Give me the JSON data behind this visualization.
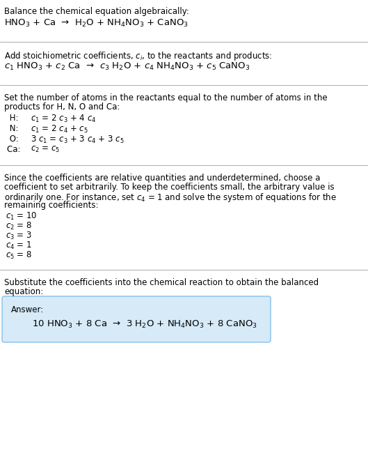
{
  "bg_color": "#ffffff",
  "text_color": "#000000",
  "title": "Balance the chemical equation algebraically:",
  "eq1": "HNO$_3$ + Ca  →  H$_2$O + NH$_4$NO$_3$ + CaNO$_3$",
  "section2_header": "Add stoichiometric coefficients, $c_i$, to the reactants and products:",
  "eq2": "$c_1$ HNO$_3$ + $c_2$ Ca  →  $c_3$ H$_2$O + $c_4$ NH$_4$NO$_3$ + $c_5$ CaNO$_3$",
  "section3_header_line1": "Set the number of atoms in the reactants equal to the number of atoms in the",
  "section3_header_line2": "products for H, N, O and Ca:",
  "equations": [
    [
      " H:  ",
      "$c_1$ = 2 $c_3$ + 4 $c_4$"
    ],
    [
      " N:  ",
      "$c_1$ = 2 $c_4$ + $c_5$"
    ],
    [
      " O:  ",
      "3 $c_1$ = $c_3$ + 3 $c_4$ + 3 $c_5$"
    ],
    [
      "Ca:  ",
      "$c_2$ = $c_5$"
    ]
  ],
  "section4_line1": "Since the coefficients are relative quantities and underdetermined, choose a",
  "section4_line2": "coefficient to set arbitrarily. To keep the coefficients small, the arbitrary value is",
  "section4_line3": "ordinarily one. For instance, set $c_4$ = 1 and solve the system of equations for the",
  "section4_line4": "remaining coefficients:",
  "coefficients": [
    "$c_1$ = 10",
    "$c_2$ = 8",
    "$c_3$ = 3",
    "$c_4$ = 1",
    "$c_5$ = 8"
  ],
  "section5_line1": "Substitute the coefficients into the chemical reaction to obtain the balanced",
  "section5_line2": "equation:",
  "answer_label": "Answer:",
  "answer_eq": "10 HNO$_3$ + 8 Ca  →  3 H$_2$O + NH$_4$NO$_3$ + 8 CaNO$_3$",
  "answer_box_color": "#d6eaf8",
  "answer_box_border": "#85c1e9",
  "figsize": [
    5.29,
    6.47
  ],
  "dpi": 100
}
